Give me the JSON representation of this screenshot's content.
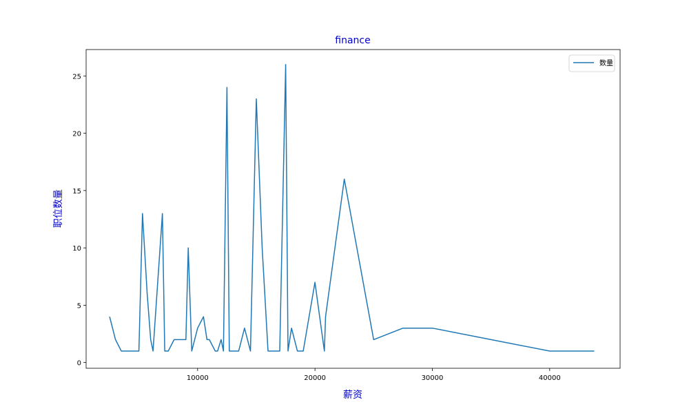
{
  "chart_data": {
    "type": "line",
    "title": "finance",
    "xlabel": "薪资",
    "ylabel": "职位数量",
    "xlim": [
      500,
      46000
    ],
    "ylim": [
      -0.5,
      27.3
    ],
    "xticks": [
      10000,
      20000,
      30000,
      40000
    ],
    "yticks": [
      0,
      5,
      10,
      15,
      20,
      25
    ],
    "legend_position": "top-right",
    "grid": false,
    "series": [
      {
        "name": "数量",
        "color": "#1f77b4",
        "x": [
          2500,
          3000,
          3500,
          4000,
          4500,
          5000,
          5300,
          5700,
          6000,
          6200,
          7000,
          7200,
          7500,
          8000,
          8500,
          9000,
          9200,
          9500,
          10000,
          10500,
          10800,
          11000,
          11500,
          11700,
          12000,
          12200,
          12500,
          12700,
          13000,
          13500,
          14000,
          14500,
          15000,
          15500,
          16000,
          16500,
          17000,
          17500,
          17700,
          18000,
          18500,
          19000,
          20000,
          20800,
          20900,
          22500,
          25000,
          27500,
          30000,
          35000,
          40000,
          43800
        ],
        "y": [
          4,
          2,
          1,
          1,
          1,
          1,
          13,
          6,
          2,
          1,
          13,
          1,
          1,
          2,
          2,
          2,
          10,
          1,
          3,
          4,
          2,
          2,
          1,
          1,
          2,
          1,
          24,
          1,
          1,
          1,
          3,
          1,
          23,
          10,
          1,
          1,
          1,
          26,
          1,
          3,
          1,
          1,
          7,
          1,
          4,
          16,
          2,
          3,
          3,
          2,
          1,
          1
        ]
      }
    ]
  },
  "colors": {
    "title": "#0000cc",
    "axis_label": "#0000cc",
    "line": "#1f77b4"
  }
}
